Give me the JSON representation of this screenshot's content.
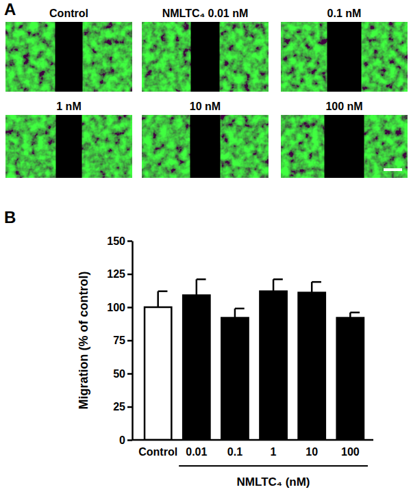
{
  "panel_a": {
    "label": "A",
    "images": [
      "Control",
      "NMLTC₄ 0.01 nM",
      "0.1 nM",
      "1 nM",
      "10 nM",
      "100 nM"
    ]
  },
  "panel_b": {
    "label": "B"
  },
  "chart_data": {
    "type": "bar",
    "categories": [
      "Control",
      "0.01",
      "0.1",
      "1",
      "10",
      "100"
    ],
    "values": [
      100,
      109,
      92,
      112,
      111,
      92
    ],
    "errors": [
      12,
      12,
      7,
      9,
      8,
      4
    ],
    "colors": [
      "#ffffff",
      "#000000",
      "#000000",
      "#000000",
      "#000000",
      "#000000"
    ],
    "y_label": "Migration (% of control)",
    "x_group_label": "NMLTC₄ (nM)",
    "ylim": [
      0,
      150
    ],
    "yticks": [
      0,
      25,
      50,
      75,
      100,
      125,
      150
    ],
    "grid": false
  }
}
